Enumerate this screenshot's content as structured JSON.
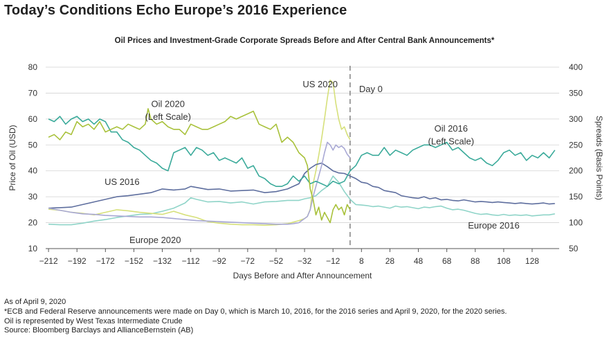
{
  "headline": "Today’s Conditions Echo Europe’s 2016 Experience",
  "notes": [
    "As of April 9, 2020",
    "*ECB and Federal Reserve announcements were made on Day 0, which is March 10, 2016, for the 2016 series and April 9, 2020, for the 2020 series.",
    "Oil is represented by West Texas Intermediate Crude",
    "Source: Bloomberg Barclays and AllianceBernstein (AB)"
  ],
  "chart_data": {
    "type": "line",
    "title": "Oil Prices and Investment-Grade Corporate Spreads Before and After Central Bank Announcements*",
    "xlabel": "Days Before and After Announcement",
    "ylabel_left": "Price of Oil (USD)",
    "ylabel_right": "Spreads (Basis Points)",
    "xlim": [
      -214,
      147
    ],
    "ylim_left": [
      10,
      80
    ],
    "ylim_right": [
      50,
      400
    ],
    "x_ticks": [
      -212,
      -192,
      -172,
      -152,
      -132,
      -112,
      -92,
      -72,
      -52,
      -32,
      -12,
      8,
      28,
      48,
      68,
      88,
      108,
      128
    ],
    "y_ticks_left": [
      10,
      20,
      30,
      40,
      50,
      60,
      70,
      80
    ],
    "y_ticks_right": [
      50,
      100,
      150,
      200,
      250,
      300,
      350,
      400
    ],
    "day0_line": {
      "x": 0,
      "label": "Day 0"
    },
    "colors": {
      "oil2020": "#a8c13a",
      "oil2016": "#3aaa9a",
      "us2020": "#a8a8d4",
      "us2016": "#5e6e9e",
      "europe2020": "#d6e07a",
      "europe2016": "#8fd4c8"
    },
    "series": [
      {
        "name": "Oil 2020 (Left Scale)",
        "key": "oil2020",
        "axis": "left",
        "x": [
          -212,
          -208,
          -204,
          -200,
          -196,
          -192,
          -188,
          -184,
          -180,
          -176,
          -172,
          -168,
          -164,
          -160,
          -156,
          -152,
          -148,
          -144,
          -142,
          -140,
          -136,
          -132,
          -128,
          -124,
          -120,
          -116,
          -112,
          -108,
          -104,
          -100,
          -96,
          -92,
          -88,
          -84,
          -80,
          -76,
          -72,
          -68,
          -64,
          -60,
          -56,
          -52,
          -48,
          -44,
          -40,
          -36,
          -32,
          -30,
          -28,
          -26,
          -24,
          -22,
          -20,
          -18,
          -16,
          -14,
          -12,
          -10,
          -8,
          -6,
          -4,
          -2,
          0
        ],
        "y": [
          53,
          54,
          52,
          55,
          54,
          59,
          57,
          58,
          56,
          59,
          55,
          56,
          57,
          56,
          58,
          57,
          56,
          58,
          64,
          60,
          58,
          59,
          57,
          56,
          56,
          54,
          58,
          57,
          56,
          56,
          57,
          58,
          59,
          61,
          60,
          61,
          62,
          63,
          58,
          57,
          56,
          58,
          51,
          53,
          51,
          47,
          45,
          42,
          33,
          29,
          23,
          26,
          21,
          24,
          22,
          20,
          25,
          27,
          25,
          26,
          23,
          27,
          25
        ],
        "labels": [
          "Oil 2020",
          "(Left Scale)"
        ],
        "label_x": -128,
        "label_y": [
          64.7,
          59.7
        ],
        "label_anchor": "middle"
      },
      {
        "name": "Oil 2016 (Left Scale)",
        "key": "oil2016",
        "axis": "left",
        "x": [
          -212,
          -208,
          -204,
          -200,
          -196,
          -192,
          -188,
          -184,
          -180,
          -176,
          -172,
          -168,
          -164,
          -160,
          -156,
          -152,
          -148,
          -144,
          -140,
          -136,
          -132,
          -128,
          -124,
          -120,
          -116,
          -112,
          -108,
          -104,
          -100,
          -96,
          -92,
          -88,
          -84,
          -80,
          -76,
          -72,
          -68,
          -64,
          -60,
          -56,
          -52,
          -48,
          -44,
          -40,
          -36,
          -32,
          -28,
          -24,
          -20,
          -16,
          -12,
          -8,
          -4,
          0,
          4,
          8,
          12,
          16,
          20,
          24,
          28,
          32,
          36,
          40,
          44,
          48,
          52,
          56,
          60,
          64,
          68,
          72,
          76,
          80,
          84,
          88,
          92,
          96,
          100,
          104,
          108,
          112,
          116,
          120,
          124,
          128,
          132,
          136,
          140,
          144
        ],
        "y": [
          60,
          59,
          61,
          58,
          60,
          61,
          59,
          60,
          58,
          60,
          59,
          55,
          55,
          52,
          51,
          49,
          48,
          46,
          44,
          43,
          41,
          40,
          47,
          48,
          49,
          46,
          49,
          48,
          46,
          47,
          44,
          45,
          44,
          43,
          45,
          41,
          42,
          38,
          37,
          35,
          34,
          34,
          35,
          38,
          36,
          38,
          35,
          36,
          35,
          34,
          36,
          35,
          36,
          40,
          42,
          46,
          47,
          46,
          46,
          49,
          46,
          48,
          47,
          46,
          48,
          49,
          50,
          50,
          49,
          50,
          51,
          48,
          49,
          47,
          45,
          44,
          45,
          43,
          42,
          44,
          47,
          48,
          46,
          47,
          44,
          46,
          45,
          47,
          45,
          48
        ],
        "labels": [
          "Oil 2016",
          "(Left Scale)"
        ],
        "label_x": 71,
        "label_y": [
          55.2,
          50.2
        ],
        "label_anchor": "middle"
      },
      {
        "name": "US 2020",
        "key": "us2020",
        "axis": "right",
        "x": [
          -212,
          -204,
          -196,
          -188,
          -180,
          -172,
          -164,
          -156,
          -148,
          -140,
          -132,
          -124,
          -116,
          -108,
          -100,
          -92,
          -84,
          -76,
          -68,
          -60,
          -52,
          -44,
          -40,
          -36,
          -32,
          -30,
          -28,
          -26,
          -24,
          -22,
          -20,
          -18,
          -16,
          -14,
          -12,
          -10,
          -8,
          -6,
          -4,
          -2,
          0
        ],
        "y": [
          128,
          124,
          120,
          117,
          116,
          114,
          113,
          112,
          111,
          111,
          110,
          108,
          106,
          104,
          103,
          102,
          101,
          100,
          99,
          98,
          97,
          97,
          98,
          100,
          108,
          112,
          125,
          150,
          170,
          190,
          210,
          235,
          255,
          250,
          240,
          250,
          245,
          248,
          243,
          232,
          225
        ],
        "labels": [
          "US 2020"
        ],
        "label_x": -21,
        "label_y": [
          361
        ],
        "label_anchor": "middle"
      },
      {
        "name": "US 2016",
        "key": "us2016",
        "axis": "right",
        "x": [
          -212,
          -204,
          -196,
          -188,
          -180,
          -172,
          -164,
          -156,
          -148,
          -140,
          -132,
          -124,
          -116,
          -112,
          -108,
          -100,
          -92,
          -84,
          -76,
          -68,
          -60,
          -52,
          -44,
          -36,
          -32,
          -28,
          -24,
          -20,
          -16,
          -12,
          -8,
          -4,
          0,
          4,
          8,
          12,
          16,
          20,
          24,
          28,
          32,
          36,
          40,
          44,
          48,
          52,
          56,
          60,
          64,
          68,
          72,
          76,
          80,
          84,
          88,
          92,
          96,
          100,
          104,
          108,
          112,
          116,
          120,
          124,
          128,
          132,
          136,
          140,
          144
        ],
        "y": [
          128,
          129,
          130,
          135,
          140,
          145,
          150,
          152,
          155,
          158,
          165,
          163,
          165,
          170,
          168,
          164,
          165,
          161,
          162,
          163,
          158,
          160,
          165,
          175,
          195,
          205,
          212,
          215,
          208,
          200,
          196,
          195,
          190,
          185,
          178,
          176,
          170,
          168,
          162,
          160,
          158,
          152,
          150,
          148,
          147,
          150,
          146,
          148,
          144,
          145,
          143,
          142,
          144,
          142,
          140,
          141,
          140,
          139,
          140,
          139,
          138,
          137,
          138,
          137,
          136,
          137,
          138,
          136,
          137
        ],
        "labels": [
          "US 2016"
        ],
        "label_x": -148,
        "label_y": [
          173
        ],
        "label_anchor": "end"
      },
      {
        "name": "Europe 2020",
        "key": "europe2020",
        "axis": "right",
        "x": [
          -212,
          -204,
          -196,
          -188,
          -180,
          -172,
          -164,
          -156,
          -148,
          -140,
          -132,
          -124,
          -116,
          -108,
          -100,
          -92,
          -84,
          -76,
          -68,
          -60,
          -52,
          -44,
          -40,
          -36,
          -32,
          -30,
          -28,
          -26,
          -24,
          -22,
          -20,
          -18,
          -16,
          -14,
          -12,
          -10,
          -8,
          -6,
          -4,
          -2,
          0
        ],
        "y": [
          126,
          124,
          120,
          118,
          115,
          120,
          125,
          123,
          120,
          118,
          116,
          122,
          115,
          110,
          102,
          99,
          97,
          96,
          96,
          95,
          96,
          98,
          101,
          104,
          108,
          112,
          126,
          175,
          200,
          230,
          262,
          300,
          340,
          375,
          370,
          330,
          300,
          280,
          285,
          270,
          260
        ],
        "labels": [
          "Europe 2020"
        ],
        "label_x": -137,
        "label_y": [
          -1
        ],
        "label_anchor": "middle"
      },
      {
        "name": "Europe 2016",
        "key": "europe2016",
        "axis": "right",
        "x": [
          -212,
          -204,
          -196,
          -188,
          -180,
          -172,
          -164,
          -156,
          -148,
          -140,
          -132,
          -124,
          -116,
          -112,
          -108,
          -100,
          -92,
          -84,
          -76,
          -68,
          -60,
          -52,
          -44,
          -36,
          -32,
          -28,
          -24,
          -20,
          -16,
          -12,
          -8,
          -4,
          0,
          4,
          8,
          12,
          16,
          20,
          24,
          28,
          32,
          36,
          40,
          44,
          48,
          52,
          56,
          60,
          64,
          68,
          72,
          76,
          80,
          84,
          88,
          92,
          96,
          100,
          104,
          108,
          112,
          116,
          120,
          124,
          128,
          132,
          136,
          140,
          144
        ],
        "y": [
          97,
          96,
          96,
          99,
          103,
          106,
          110,
          113,
          116,
          117,
          122,
          128,
          138,
          148,
          145,
          140,
          141,
          138,
          140,
          136,
          140,
          141,
          143,
          143,
          146,
          148,
          152,
          162,
          170,
          190,
          178,
          160,
          145,
          135,
          134,
          133,
          131,
          132,
          130,
          128,
          132,
          130,
          131,
          129,
          127,
          130,
          129,
          131,
          132,
          128,
          125,
          126,
          124,
          121,
          118,
          116,
          117,
          115,
          114,
          116,
          114,
          115,
          114,
          115,
          113,
          114,
          115,
          115,
          117
        ],
        "labels": [
          "Europe 2016"
        ],
        "label_x": 101,
        "label_y": [
          89
        ],
        "label_anchor": "middle"
      }
    ]
  }
}
